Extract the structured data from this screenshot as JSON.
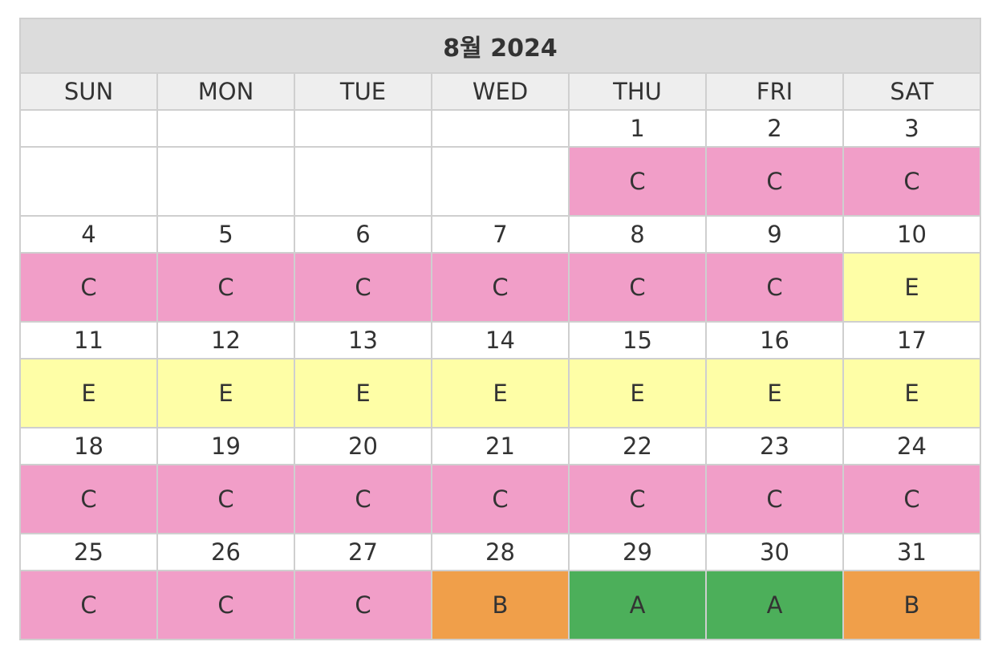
{
  "calendar": {
    "title": "8월 2024",
    "weekdays": [
      "SUN",
      "MON",
      "TUE",
      "WED",
      "THU",
      "FRI",
      "SAT"
    ],
    "weeks": [
      {
        "dates": [
          "",
          "",
          "",
          "",
          "1",
          "2",
          "3"
        ],
        "shifts": [
          "",
          "",
          "",
          "",
          "C",
          "C",
          "C"
        ]
      },
      {
        "dates": [
          "4",
          "5",
          "6",
          "7",
          "8",
          "9",
          "10"
        ],
        "shifts": [
          "C",
          "C",
          "C",
          "C",
          "C",
          "C",
          "E"
        ]
      },
      {
        "dates": [
          "11",
          "12",
          "13",
          "14",
          "15",
          "16",
          "17"
        ],
        "shifts": [
          "E",
          "E",
          "E",
          "E",
          "E",
          "E",
          "E"
        ]
      },
      {
        "dates": [
          "18",
          "19",
          "20",
          "21",
          "22",
          "23",
          "24"
        ],
        "shifts": [
          "C",
          "C",
          "C",
          "C",
          "C",
          "C",
          "C"
        ]
      },
      {
        "dates": [
          "25",
          "26",
          "27",
          "28",
          "29",
          "30",
          "31"
        ],
        "shifts": [
          "C",
          "C",
          "C",
          "B",
          "A",
          "A",
          "B"
        ]
      }
    ],
    "shift_colors": {
      "A": "#4caf5a",
      "B": "#f09f4a",
      "C": "#f19ec8",
      "E": "#fefea6",
      "": "#ffffff"
    }
  }
}
